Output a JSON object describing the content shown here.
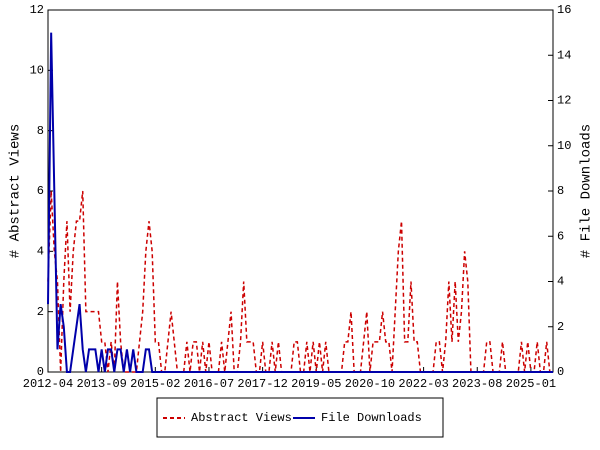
{
  "chart_data": {
    "type": "line",
    "y_label": "# Abstract Views",
    "y2_label": "# File Downloads",
    "x": [
      "2012-04",
      "2012-05",
      "2012-06",
      "2012-07",
      "2012-08",
      "2012-09",
      "2012-10",
      "2012-11",
      "2012-12",
      "2013-01",
      "2013-02",
      "2013-03",
      "2013-04",
      "2013-05",
      "2013-06",
      "2013-07",
      "2013-08",
      "2013-09",
      "2013-10",
      "2013-11",
      "2013-12",
      "2014-01",
      "2014-02",
      "2014-03",
      "2014-04",
      "2014-05",
      "2014-06",
      "2014-07",
      "2014-08",
      "2014-09",
      "2014-10",
      "2014-11",
      "2014-12",
      "2015-01",
      "2015-02",
      "2015-03",
      "2015-04",
      "2015-05",
      "2015-06",
      "2015-07",
      "2015-08",
      "2015-09",
      "2015-10",
      "2015-11",
      "2015-12",
      "2016-01",
      "2016-02",
      "2016-03",
      "2016-04",
      "2016-05",
      "2016-06",
      "2016-07",
      "2016-08",
      "2016-09",
      "2016-10",
      "2016-11",
      "2016-12",
      "2017-01",
      "2017-02",
      "2017-03",
      "2017-04",
      "2017-05",
      "2017-06",
      "2017-07",
      "2017-08",
      "2017-09",
      "2017-10",
      "2017-11",
      "2017-12",
      "2018-01",
      "2018-02",
      "2018-03",
      "2018-04",
      "2018-05",
      "2018-06",
      "2018-07",
      "2018-08",
      "2018-09",
      "2018-10",
      "2018-11",
      "2018-12",
      "2019-01",
      "2019-02",
      "2019-03",
      "2019-04",
      "2019-05",
      "2019-06",
      "2019-07",
      "2019-08",
      "2019-09",
      "2019-10",
      "2019-11",
      "2019-12",
      "2020-01",
      "2020-02",
      "2020-03",
      "2020-04",
      "2020-05",
      "2020-06",
      "2020-07",
      "2020-08",
      "2020-09",
      "2020-10",
      "2020-11",
      "2020-12",
      "2021-01",
      "2021-02",
      "2021-03",
      "2021-04",
      "2021-05",
      "2021-06",
      "2021-07",
      "2021-08",
      "2021-09",
      "2021-10",
      "2021-11",
      "2021-12",
      "2022-01",
      "2022-02",
      "2022-03",
      "2022-04",
      "2022-05",
      "2022-06",
      "2022-07",
      "2022-08",
      "2022-09",
      "2022-10",
      "2022-11",
      "2022-12",
      "2023-01",
      "2023-02",
      "2023-03",
      "2023-04",
      "2023-05",
      "2023-06",
      "2023-07",
      "2023-08",
      "2023-09",
      "2023-10",
      "2023-11",
      "2023-12",
      "2024-01",
      "2024-02",
      "2024-03",
      "2024-04",
      "2024-05",
      "2024-06",
      "2024-07",
      "2024-08",
      "2024-09",
      "2024-10",
      "2024-11",
      "2024-12",
      "2025-01",
      "2025-02",
      "2025-03",
      "2025-04",
      "2025-05",
      "2025-06",
      "2025-07",
      "2025-08"
    ],
    "xticks": [
      "2012-04",
      "2013-09",
      "2015-02",
      "2016-07",
      "2017-12",
      "2019-05",
      "2020-10",
      "2022-03",
      "2023-08",
      "2025-01"
    ],
    "ylim": [
      0,
      12
    ],
    "yticks": [
      0,
      2,
      4,
      6,
      8,
      10,
      12
    ],
    "y2lim": [
      0,
      16
    ],
    "y2ticks": [
      0,
      2,
      4,
      6,
      8,
      10,
      12,
      14,
      16
    ],
    "legend": "bottom",
    "series": [
      {
        "name": "Abstract Views",
        "color": "#cc0000",
        "dash": true,
        "values": [
          3,
          6,
          4,
          3,
          0,
          3,
          5,
          2,
          4,
          5,
          5,
          6,
          2,
          2,
          2,
          2,
          2,
          1,
          1,
          0,
          1,
          0,
          3,
          1,
          0,
          0,
          0,
          0,
          0,
          1,
          2,
          4,
          5,
          4,
          1,
          1,
          0,
          0,
          1,
          2,
          1,
          0,
          0,
          0,
          1,
          0,
          1,
          1,
          0,
          1,
          0,
          1,
          0,
          0,
          0,
          1,
          0,
          1,
          2,
          0,
          0,
          1,
          3,
          1,
          1,
          1,
          0,
          0,
          1,
          0,
          0,
          1,
          0,
          1,
          0,
          0,
          0,
          0,
          1,
          1,
          0,
          0,
          1,
          0,
          1,
          0,
          1,
          0,
          1,
          0,
          0,
          0,
          0,
          0,
          1,
          1,
          2,
          0,
          0,
          0,
          1,
          2,
          0,
          1,
          1,
          1,
          2,
          1,
          1,
          0,
          2,
          4,
          5,
          1,
          1,
          3,
          1,
          1,
          0,
          0,
          0,
          0,
          0,
          1,
          1,
          0,
          1,
          3,
          1,
          3,
          1,
          2,
          4,
          3,
          0,
          0,
          0,
          0,
          0,
          1,
          1,
          0,
          0,
          0,
          1,
          0,
          0,
          0,
          0,
          0,
          1,
          0,
          1,
          0,
          0,
          1,
          0,
          0,
          1,
          0,
          0
        ]
      },
      {
        "name": "File Downloads",
        "color": "#0000aa",
        "dash": false,
        "axis": "y2",
        "values": [
          3,
          15,
          8,
          1,
          3,
          2,
          0,
          0,
          1,
          2,
          3,
          1,
          0,
          1,
          1,
          1,
          0,
          1,
          0,
          1,
          1,
          0,
          1,
          1,
          0,
          1,
          0,
          1,
          0,
          0,
          0,
          1,
          1,
          0,
          0,
          0,
          0,
          0,
          0,
          0,
          0,
          0,
          0,
          0,
          0,
          0,
          0,
          0,
          0,
          0,
          0,
          0,
          0,
          0,
          0,
          0,
          0,
          0,
          0,
          0,
          0,
          0,
          0,
          0,
          0,
          0,
          0,
          0,
          0,
          0,
          0,
          0,
          0,
          0,
          0,
          0,
          0,
          0,
          0,
          0,
          0,
          0,
          0,
          0,
          0,
          0,
          0,
          0,
          0,
          0,
          0,
          0,
          0,
          0,
          0,
          0,
          0,
          0,
          0,
          0,
          0,
          0,
          0,
          0,
          0,
          0,
          0,
          0,
          0,
          0,
          0,
          0,
          0,
          0,
          0,
          0,
          0,
          0,
          0,
          0,
          0,
          0,
          0,
          0,
          0,
          0,
          0,
          0,
          0,
          0,
          0,
          0,
          0,
          0,
          0,
          0,
          0,
          0,
          0,
          0,
          0,
          0,
          0,
          0,
          0,
          0,
          0,
          0,
          0,
          0,
          0,
          0,
          0,
          0,
          0,
          0,
          0,
          0,
          0,
          0,
          0
        ]
      }
    ]
  }
}
